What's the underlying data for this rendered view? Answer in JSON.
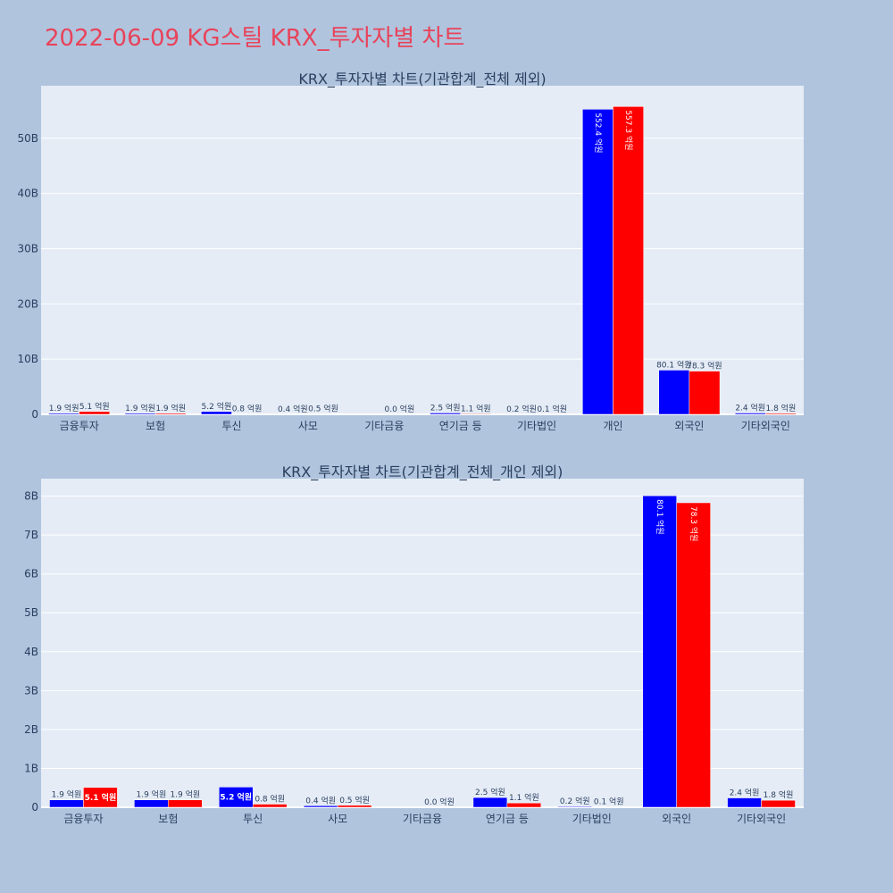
{
  "title": "2022-06-09 KG스틸 KRX_투자자별 차트",
  "chart_data": [
    {
      "type": "bar",
      "title": "KRX_투자자별 차트(기관합계_전체 제외)",
      "categories": [
        "금융투자",
        "보험",
        "투신",
        "사모",
        "기타금융",
        "연기금 등",
        "기타법인",
        "개인",
        "외국인",
        "기타외국인"
      ],
      "series": [
        {
          "color": "#0000ff",
          "values": [
            0.19,
            0.19,
            0.52,
            0.04,
            0,
            0.25,
            0.02,
            55.24,
            8.01,
            0.24
          ],
          "labels": [
            "1.9 억원",
            "1.9 억원",
            "5.2 억원",
            "0.4 억원",
            "",
            "2.5 억원",
            "0.2 억원",
            "552.4 억원",
            "80.1 억원",
            "2.4 억원"
          ]
        },
        {
          "color": "#ff0000",
          "values": [
            0.51,
            0.19,
            0.08,
            0.05,
            0.0,
            0.11,
            0.01,
            55.73,
            7.83,
            0.18
          ],
          "labels": [
            "5.1 억원",
            "1.9 억원",
            "0.8 억원",
            "0.5 억원",
            "0.0 억원",
            "1.1 억원",
            "0.1 억원",
            "557.3 억원",
            "78.3 억원",
            "1.8 억원"
          ]
        }
      ],
      "yticks": [
        0,
        10,
        20,
        30,
        40,
        50
      ],
      "ytick_labels": [
        "0",
        "10B",
        "20B",
        "30B",
        "40B",
        "50B"
      ],
      "ylim": [
        0,
        59.5
      ]
    },
    {
      "type": "bar",
      "title": "KRX_투자자별 차트(기관합계_전체_개인 제외)",
      "categories": [
        "금융투자",
        "보험",
        "투신",
        "사모",
        "기타금융",
        "연기금 등",
        "기타법인",
        "외국인",
        "기타외국인"
      ],
      "series": [
        {
          "color": "#0000ff",
          "values": [
            0.19,
            0.19,
            0.52,
            0.04,
            0,
            0.25,
            0.02,
            8.01,
            0.24
          ],
          "labels": [
            "1.9 억원",
            "1.9 억원",
            "5.2 억원",
            "0.4 억원",
            "",
            "2.5 억원",
            "0.2 억원",
            "80.1 억원",
            "2.4 억원"
          ]
        },
        {
          "color": "#ff0000",
          "values": [
            0.51,
            0.19,
            0.08,
            0.05,
            0.0,
            0.11,
            0.01,
            7.83,
            0.18
          ],
          "labels": [
            "5.1 억원",
            "1.9 억원",
            "0.8 억원",
            "0.5 억원",
            "0.0 억원",
            "1.1 억원",
            "0.1 억원",
            "78.3 억원",
            "1.8 억원"
          ]
        }
      ],
      "yticks": [
        0,
        1,
        2,
        3,
        4,
        5,
        6,
        7,
        8
      ],
      "ytick_labels": [
        "0",
        "1B",
        "2B",
        "3B",
        "4B",
        "5B",
        "6B",
        "7B",
        "8B"
      ],
      "ylim": [
        0,
        8.45
      ]
    }
  ]
}
